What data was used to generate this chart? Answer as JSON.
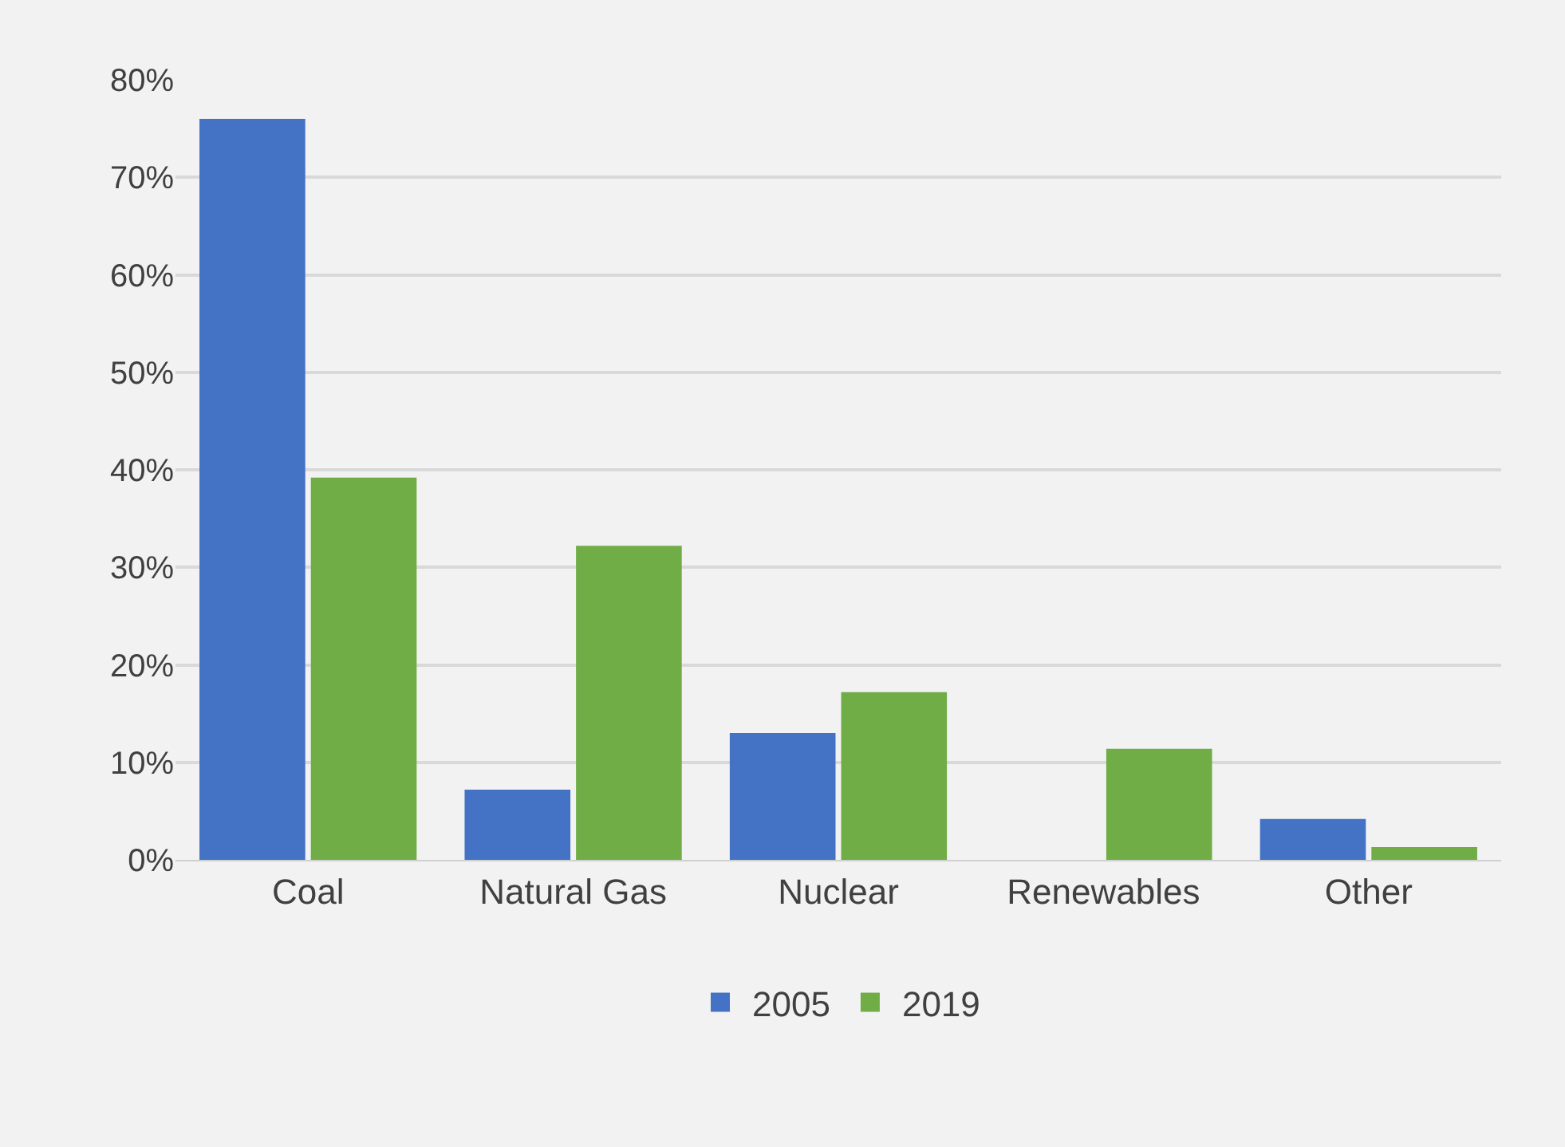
{
  "chart_data": {
    "type": "bar",
    "categories": [
      "Coal",
      "Natural Gas",
      "Nuclear",
      "Renewables",
      "Other"
    ],
    "series": [
      {
        "name": "2005",
        "color": "#4472c4",
        "values": [
          76,
          7.2,
          13,
          0,
          4.2
        ]
      },
      {
        "name": "2019",
        "color": "#70ad47",
        "values": [
          39.2,
          32.2,
          17.2,
          11.4,
          1.3
        ]
      }
    ],
    "ylim": [
      0,
      80
    ],
    "yticks": [
      {
        "value": 0,
        "label": "0%"
      },
      {
        "value": 10,
        "label": "10%"
      },
      {
        "value": 20,
        "label": "20%"
      },
      {
        "value": 30,
        "label": "30%"
      },
      {
        "value": 40,
        "label": "40%"
      },
      {
        "value": 50,
        "label": "50%"
      },
      {
        "value": 60,
        "label": "60%"
      },
      {
        "value": 70,
        "label": "70%"
      },
      {
        "value": 80,
        "label": "80%"
      }
    ],
    "grid": "y",
    "legend": "bottom"
  }
}
